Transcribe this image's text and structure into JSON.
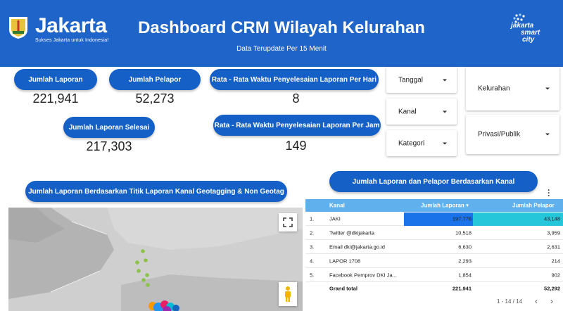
{
  "header": {
    "brand_name": "Jakarta",
    "brand_tagline": "Sukses Jakarta untuk Indonesia!",
    "title": "Dashboard CRM Wilayah Kelurahan",
    "subtitle": "Data Terupdate Per 15 Menit",
    "smartcity_logo": [
      "jakarta",
      "smart",
      "city"
    ],
    "bg_color": "#1f64c8"
  },
  "kpis": {
    "jumlah_laporan": {
      "label": "Jumlah Laporan",
      "value": "221,941"
    },
    "jumlah_pelapor": {
      "label": "Jumlah Pelapor",
      "value": "52,273"
    },
    "rata_hari": {
      "label": "Rata - Rata Waktu Penyelesaian Laporan Per Hari",
      "value": "8"
    },
    "laporan_selesai": {
      "label": "Jumlah Laporan Selesai",
      "value": "217,303"
    },
    "rata_jam": {
      "label": "Rata - Rata Waktu Penyelesaian Laporan Per Jam",
      "value": "149"
    }
  },
  "filters": {
    "tanggal": "Tanggal",
    "kanal": "Kanal",
    "kategori": "Kategori",
    "kelurahan": "Kelurahan",
    "privasi": "Privasi/Publik"
  },
  "map_section": {
    "title": "Jumlah Laporan Berdasarkan Titik Laporan Kanal Geotagging & Non Geotag",
    "fullscreen_icon": "fullscreen-icon",
    "pegman_icon": "pegman-icon"
  },
  "table_section": {
    "title": "Jumlah Laporan dan Pelapor Berdasarkan Kanal",
    "columns": [
      "Kanal",
      "Jumlah Laporan",
      "Jumlah Pelapor"
    ],
    "rows": [
      {
        "no": "1.",
        "kanal": "JAKI",
        "laporan": "197,776",
        "pelapor": "43,148"
      },
      {
        "no": "2.",
        "kanal": "Twitter @dkijakarta",
        "laporan": "10,518",
        "pelapor": "3,959"
      },
      {
        "no": "3.",
        "kanal": "Email dki@jakarta.go.id",
        "laporan": "6,630",
        "pelapor": "2,631"
      },
      {
        "no": "4.",
        "kanal": "LAPOR 1708",
        "laporan": "2,293",
        "pelapor": "214"
      },
      {
        "no": "5.",
        "kanal": "Facebook Pemprov DKI Ja...",
        "laporan": "1,854",
        "pelapor": "902"
      }
    ],
    "grand_total": {
      "label": "Grand total",
      "laporan": "221,941",
      "pelapor": "52,292"
    },
    "pagination": "1 - 14 / 14",
    "accent_colors": {
      "header": "#5fb0ec",
      "laporan_bar": "#1a73e8",
      "pelapor_bar": "#26c6da"
    }
  }
}
